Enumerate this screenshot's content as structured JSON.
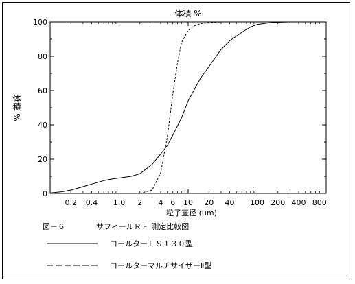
{
  "chart_data": {
    "type": "line",
    "title": "体積 %",
    "ylabel": "体積 %",
    "xlabel": "粒子直径 (um)",
    "x_scale": "log",
    "xlim": [
      0.1,
      1000
    ],
    "ylim": [
      0,
      100
    ],
    "x_ticks": [
      0.2,
      0.4,
      1.0,
      2,
      4,
      6,
      10,
      20,
      40,
      100,
      200,
      400,
      800
    ],
    "x_tick_labels": [
      "0.2",
      "0.4",
      "1.0",
      "2",
      "4",
      "6",
      "10",
      "20",
      "40",
      "100",
      "200",
      "400",
      "800"
    ],
    "y_ticks": [
      0,
      20,
      40,
      60,
      80,
      100
    ],
    "y_tick_labels": [
      "0",
      "20",
      "40",
      "60",
      "80",
      "100"
    ],
    "grid": false,
    "series": [
      {
        "name": "コールターＬＳ１３０型",
        "style": "solid",
        "x": [
          0.06,
          0.1,
          0.15,
          0.2,
          0.3,
          0.4,
          0.6,
          0.8,
          1.0,
          1.5,
          2,
          3,
          4,
          5,
          6,
          8,
          10,
          15,
          20,
          30,
          40,
          60,
          80,
          100,
          150,
          200,
          300,
          800
        ],
        "y": [
          0,
          0.3,
          1,
          2,
          4,
          5.5,
          7.5,
          8.5,
          9,
          10,
          11.5,
          17,
          23,
          28,
          34,
          44,
          54,
          67,
          74,
          84,
          89,
          94,
          97,
          98.5,
          99.5,
          99.8,
          100,
          100
        ]
      },
      {
        "name": "コールターマルチサイザーⅡ型",
        "style": "dashed",
        "x": [
          2,
          3,
          4,
          5,
          6,
          7,
          8,
          10,
          12,
          15,
          20,
          30,
          40,
          60,
          100,
          800
        ],
        "y": [
          0,
          2,
          12,
          33,
          58,
          76,
          88,
          95,
          97.5,
          99,
          99.6,
          100,
          100,
          100,
          100,
          100
        ]
      }
    ]
  },
  "captions": {
    "figure_label": "図－６",
    "figure_title": "サフィールＲＦ 測定比較図"
  }
}
